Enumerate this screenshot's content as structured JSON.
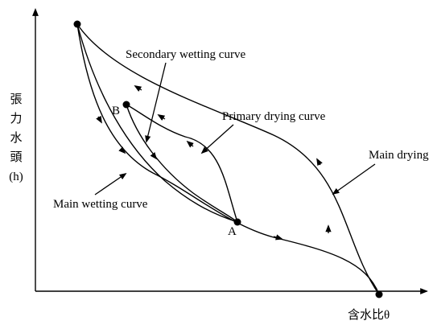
{
  "axes": {
    "y_label": [
      "張",
      "力",
      "水",
      "頭",
      "(h)"
    ],
    "x_label": "含水比θ"
  },
  "curves": [
    {
      "label": "Secondary wetting curve"
    },
    {
      "label": "Primary drying curve"
    },
    {
      "label": "Main drying"
    },
    {
      "label": "Main wetting curve"
    }
  ],
  "points": [
    {
      "label": "B"
    },
    {
      "label": "A"
    }
  ]
}
